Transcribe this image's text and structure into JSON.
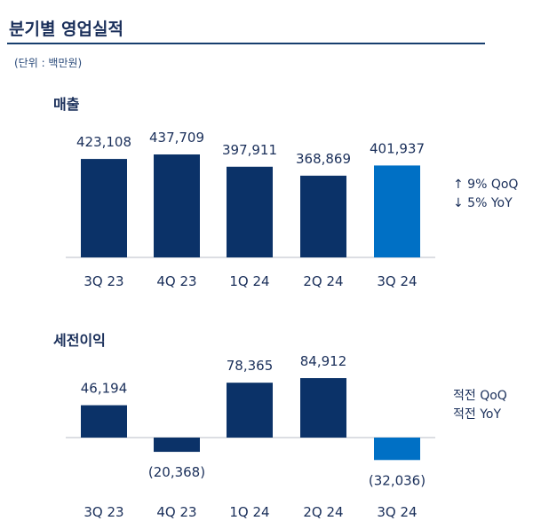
{
  "title": "분기별 영업실적",
  "unit": "(단위 : 백만원)",
  "colors": {
    "past": "#0b3268",
    "current": "#0070c5",
    "text": "#1a2f5a"
  },
  "chart_data": [
    {
      "type": "bar",
      "title": "매출",
      "categories": [
        "3Q 23",
        "4Q 23",
        "1Q 24",
        "2Q 24",
        "3Q 24"
      ],
      "values": [
        423108,
        437709,
        397911,
        368869,
        401937
      ],
      "labels": [
        "423,108",
        "437,709",
        "397,911",
        "368,869",
        "401,937"
      ],
      "ylim": [
        104000,
        440000
      ],
      "grid": false,
      "notes": [
        "↑ 9% QoQ",
        "↓ 5% YoY"
      ]
    },
    {
      "type": "bar",
      "title": "세전이익",
      "categories": [
        "3Q 23",
        "4Q 23",
        "1Q 24",
        "2Q 24",
        "3Q 24"
      ],
      "values": [
        46194,
        -20368,
        78365,
        84912,
        -32036
      ],
      "labels": [
        "46,194",
        "(20,368)",
        "78,365",
        "84,912",
        "(32,036)"
      ],
      "ylim": [
        -40000,
        90000
      ],
      "grid": false,
      "notes": [
        "적전 QoQ",
        "적전 YoY"
      ]
    }
  ]
}
